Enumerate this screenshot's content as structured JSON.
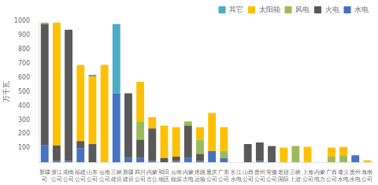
{
  "chart_data": {
    "type": "bar",
    "stacked": true,
    "categories": [
      "新疆\n司",
      "浙江\n公司",
      "湖南\n公司",
      "福建\n公司",
      "山东\n公司",
      "云南\n公司",
      "三峡\n建设",
      "新疆\n建设",
      "四川\n公司",
      "内蒙\n古公",
      "和田\n地区",
      "云南\n能源",
      "内蒙\n古电",
      "道路\n运输",
      "重庆\n公司",
      "广东\n公司",
      "长江\n水电",
      "山西\n公司",
      "贵州\n公司",
      "安徽\n公司",
      "老挝\n国际",
      "三峡\n上游",
      "上海\n公司",
      "内蒙\n电力",
      "广西\n公司",
      "遵义\n水电",
      "贵州\n水电",
      "海南\n公司"
    ],
    "series": [
      {
        "name": "水电",
        "color": "#4472C4",
        "values": [
          120,
          10,
          10,
          100,
          0,
          0,
          490,
          30,
          30,
          10,
          0,
          10,
          30,
          10,
          80,
          30,
          0,
          0,
          10,
          0,
          0,
          0,
          0,
          0,
          0,
          0,
          50,
          0
        ]
      },
      {
        "name": "火电",
        "color": "#595959",
        "values": [
          860,
          110,
          930,
          50,
          130,
          0,
          0,
          460,
          130,
          230,
          30,
          30,
          230,
          50,
          0,
          0,
          0,
          130,
          130,
          115,
          0,
          0,
          0,
          0,
          0,
          0,
          0,
          0
        ]
      },
      {
        "name": "风电",
        "color": "#9BBB59",
        "values": [
          10,
          0,
          0,
          0,
          0,
          0,
          0,
          0,
          130,
          0,
          0,
          0,
          30,
          100,
          0,
          50,
          0,
          0,
          0,
          0,
          0,
          115,
          0,
          0,
          40,
          50,
          0,
          0
        ]
      },
      {
        "name": "太阳能",
        "color": "#FFC000",
        "values": [
          0,
          870,
          0,
          540,
          480,
          690,
          0,
          0,
          280,
          80,
          230,
          210,
          0,
          90,
          270,
          170,
          0,
          0,
          0,
          0,
          105,
          0,
          110,
          0,
          65,
          60,
          0,
          15
        ]
      },
      {
        "name": "其它",
        "color": "#4BACC6",
        "values": [
          0,
          0,
          0,
          0,
          10,
          0,
          490,
          0,
          0,
          0,
          0,
          0,
          0,
          0,
          0,
          0,
          0,
          0,
          0,
          0,
          0,
          0,
          0,
          0,
          0,
          0,
          0,
          0
        ]
      }
    ],
    "ylabel": "万千瓦",
    "ylim": [
      0,
      1000
    ],
    "yticks": [
      100,
      200,
      300,
      400,
      500,
      600,
      700,
      800,
      900,
      1000
    ],
    "grid": false,
    "legend": "upper right"
  }
}
